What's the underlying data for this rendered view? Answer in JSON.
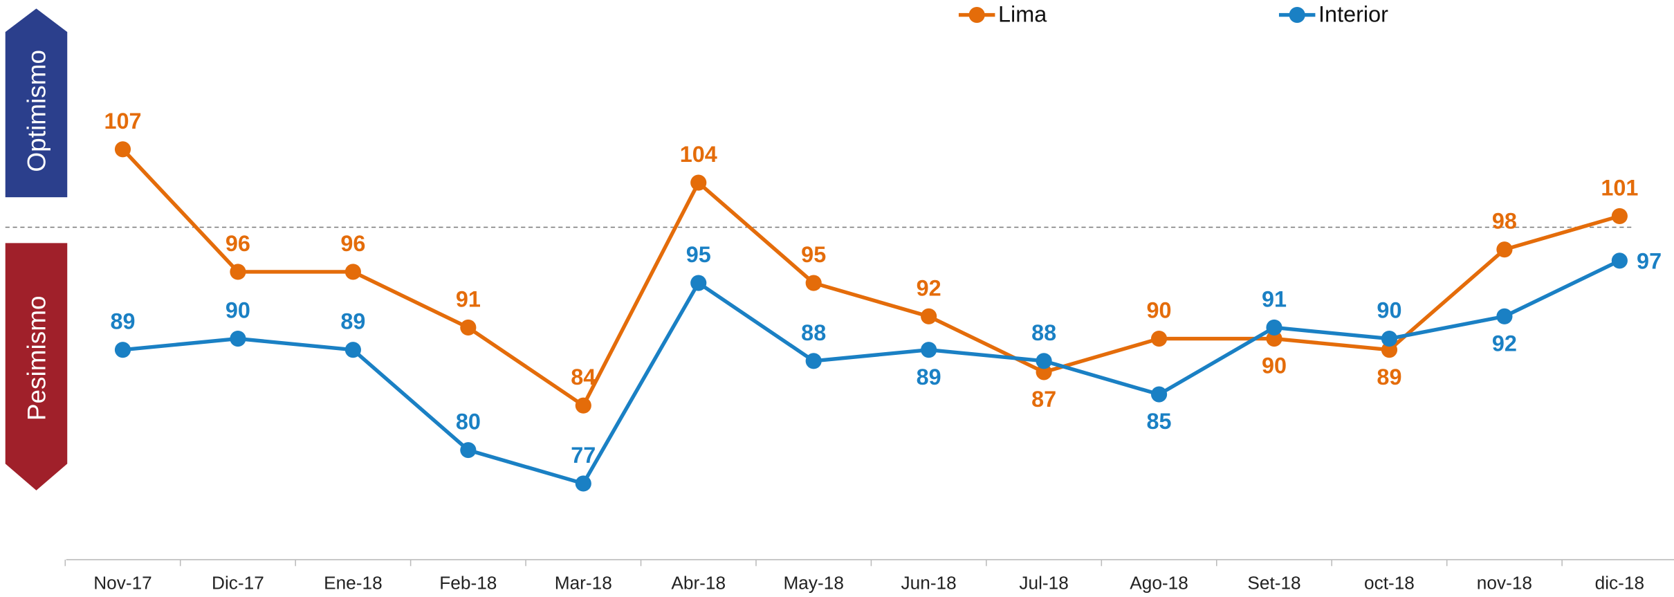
{
  "chart_data": {
    "type": "line",
    "categories": [
      "Nov-17",
      "Dic-17",
      "Ene-18",
      "Feb-18",
      "Mar-18",
      "Abr-18",
      "May-18",
      "Jun-18",
      "Jul-18",
      "Ago-18",
      "Set-18",
      "oct-18",
      "nov-18",
      "dic-18"
    ],
    "series": [
      {
        "name": "Lima",
        "color": "#E46C0A",
        "values": [
          107,
          96,
          96,
          91,
          84,
          104,
          95,
          92,
          87,
          90,
          90,
          89,
          98,
          101
        ]
      },
      {
        "name": "Interior",
        "color": "#1A80C4",
        "values": [
          89,
          90,
          89,
          80,
          77,
          95,
          88,
          89,
          88,
          85,
          91,
          90,
          92,
          97
        ]
      }
    ],
    "ylim": [
      70,
      120
    ],
    "reference_line": 100,
    "zones": {
      "upper": "Optimismo",
      "lower": "Pesimismo"
    }
  }
}
